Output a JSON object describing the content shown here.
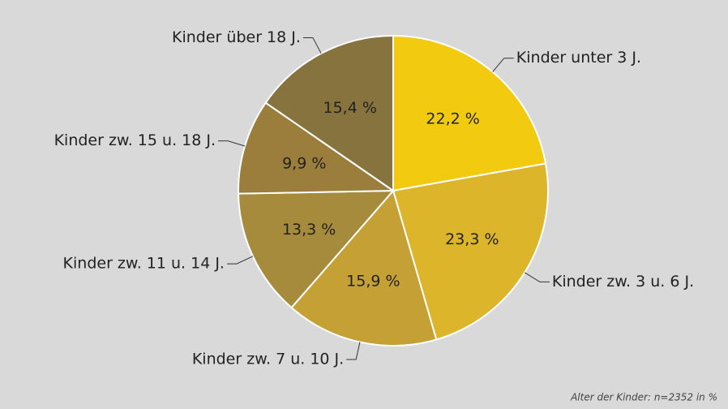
{
  "chart_data": {
    "type": "pie",
    "categories": [
      "Kinder unter 3 J.",
      "Kinder zw. 3 u. 6 J.",
      "Kinder zw. 7 u. 10 J.",
      "Kinder zw. 11 u. 14 J.",
      "Kinder zw. 15 u. 18 J.",
      "Kinder über 18 J."
    ],
    "values": [
      22.2,
      23.3,
      15.9,
      13.3,
      9.9,
      15.4
    ],
    "value_labels": [
      "22,2 %",
      "23,3 %",
      "15,9 %",
      "13,3 %",
      "9,9 %",
      "15,4 %"
    ],
    "colors": [
      "#f2cb10",
      "#dcb52b",
      "#c4a035",
      "#a68b3c",
      "#9b7e3c",
      "#86733e"
    ],
    "note": "Alter der Kinder: n=2352 in %"
  }
}
